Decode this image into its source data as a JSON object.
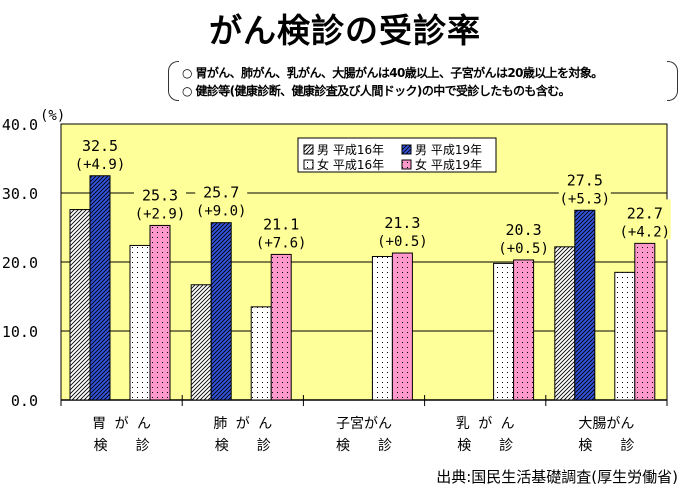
{
  "title": "がん検診の受診率",
  "notes": [
    "○ 胃がん、肺がん、乳がん、大腸がんは40歳以上、子宮がんは20歳以上を対象。",
    "○ 健診等(健康診断、健康診査及び人間ドック)の中で受診したものも含む。"
  ],
  "source": "出典:国民生活基礎調査(厚生労働省)",
  "colors": {
    "plot_bg": "#ffff99",
    "male_h19": "#3355dd",
    "female_h19": "#ff99cc",
    "hatch_light": "#ffffff",
    "grid": "#000000"
  },
  "chart_data": {
    "type": "bar",
    "title": "がん検診の受診率",
    "ylabel": "(%)",
    "ylim": [
      0,
      40
    ],
    "yticks": [
      "0.0",
      "10.0",
      "20.0",
      "30.0",
      "40.0"
    ],
    "grid": true,
    "legend_position": "top-center",
    "categories": [
      {
        "line1": "胃 が ん",
        "line2": "検　　診"
      },
      {
        "line1": "肺 が ん",
        "line2": "検　　診"
      },
      {
        "line1": "子宮がん",
        "line2": "検　　診"
      },
      {
        "line1": "乳 が ん",
        "line2": "検　　診"
      },
      {
        "line1": "大腸がん",
        "line2": "検　　診"
      }
    ],
    "series": [
      {
        "name": "男 平成16年",
        "key": "m16",
        "values": [
          27.6,
          16.7,
          null,
          null,
          22.2
        ]
      },
      {
        "name": "男 平成19年",
        "key": "m19",
        "values": [
          32.5,
          25.7,
          null,
          null,
          27.5
        ]
      },
      {
        "name": "女 平成16年",
        "key": "f16",
        "values": [
          22.4,
          13.5,
          20.8,
          19.8,
          18.5
        ]
      },
      {
        "name": "女 平成19年",
        "key": "f19",
        "values": [
          25.3,
          21.1,
          21.3,
          20.3,
          22.7
        ]
      }
    ],
    "legend": [
      "男 平成16年",
      "男 平成19年",
      "女 平成16年",
      "女 平成19年"
    ],
    "annotations": [
      {
        "series": "m19",
        "category": 0,
        "value": "32.5",
        "change": "(+4.9)"
      },
      {
        "series": "f19",
        "category": 0,
        "value": "25.3",
        "change": "(+2.9)"
      },
      {
        "series": "m19",
        "category": 1,
        "value": "25.7",
        "change": "(+9.0)"
      },
      {
        "series": "f19",
        "category": 1,
        "value": "21.1",
        "change": "(+7.6)"
      },
      {
        "series": "f19",
        "category": 2,
        "value": "21.3",
        "change": "(+0.5)"
      },
      {
        "series": "f19",
        "category": 3,
        "value": "20.3",
        "change": "(+0.5)"
      },
      {
        "series": "m19",
        "category": 4,
        "value": "27.5",
        "change": "(+5.3)"
      },
      {
        "series": "f19",
        "category": 4,
        "value": "22.7",
        "change": "(+4.2)"
      }
    ]
  }
}
